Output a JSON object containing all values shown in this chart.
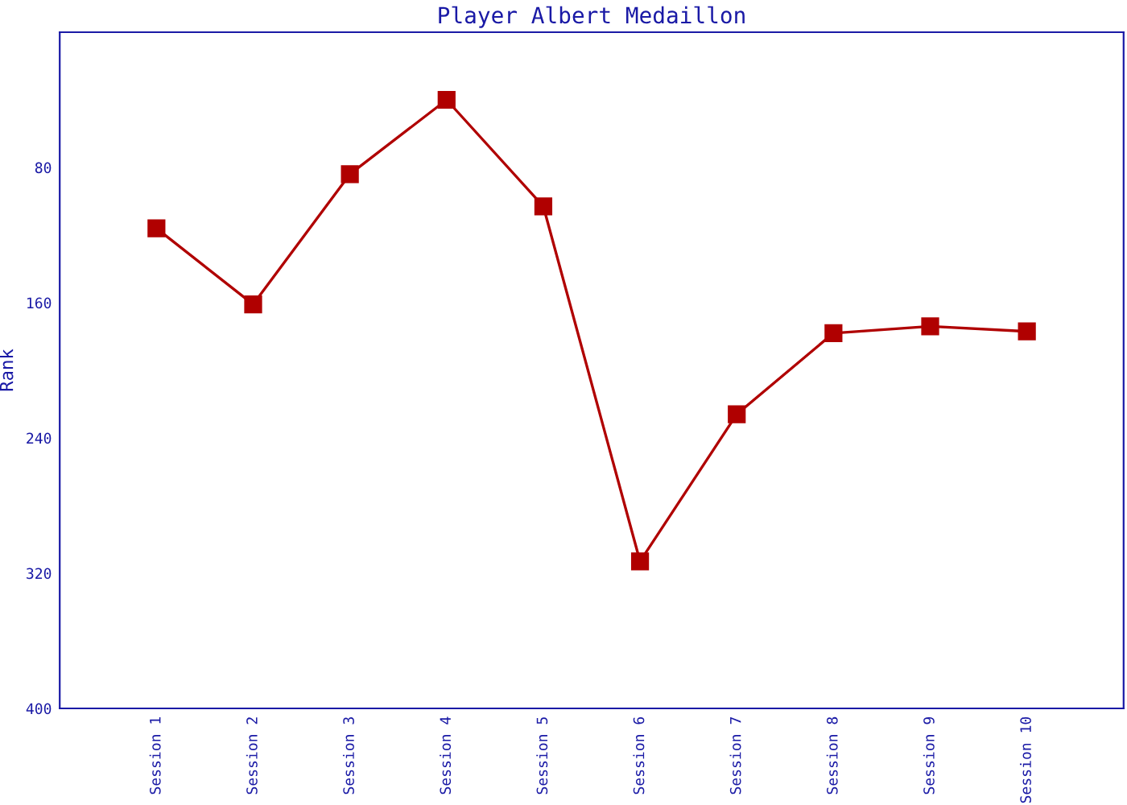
{
  "chart_data": {
    "type": "line",
    "title": "Player Albert Medaillon",
    "ylabel": "Rank",
    "categories": [
      "Session 1",
      "Session 2",
      "Session 3",
      "Session 4",
      "Session 5",
      "Session 6",
      "Session 7",
      "Session 8",
      "Session 9",
      "Session 10"
    ],
    "series": [
      {
        "color": "#b00000",
        "values": [
          116,
          161,
          84,
          40,
          103,
          313,
          226,
          178,
          174,
          177
        ]
      }
    ],
    "ylim": [
      400,
      0
    ],
    "yticks": [
      80,
      160,
      240,
      320,
      400
    ],
    "marker": "square",
    "line_style": "solid",
    "grid": false,
    "legend": false
  }
}
